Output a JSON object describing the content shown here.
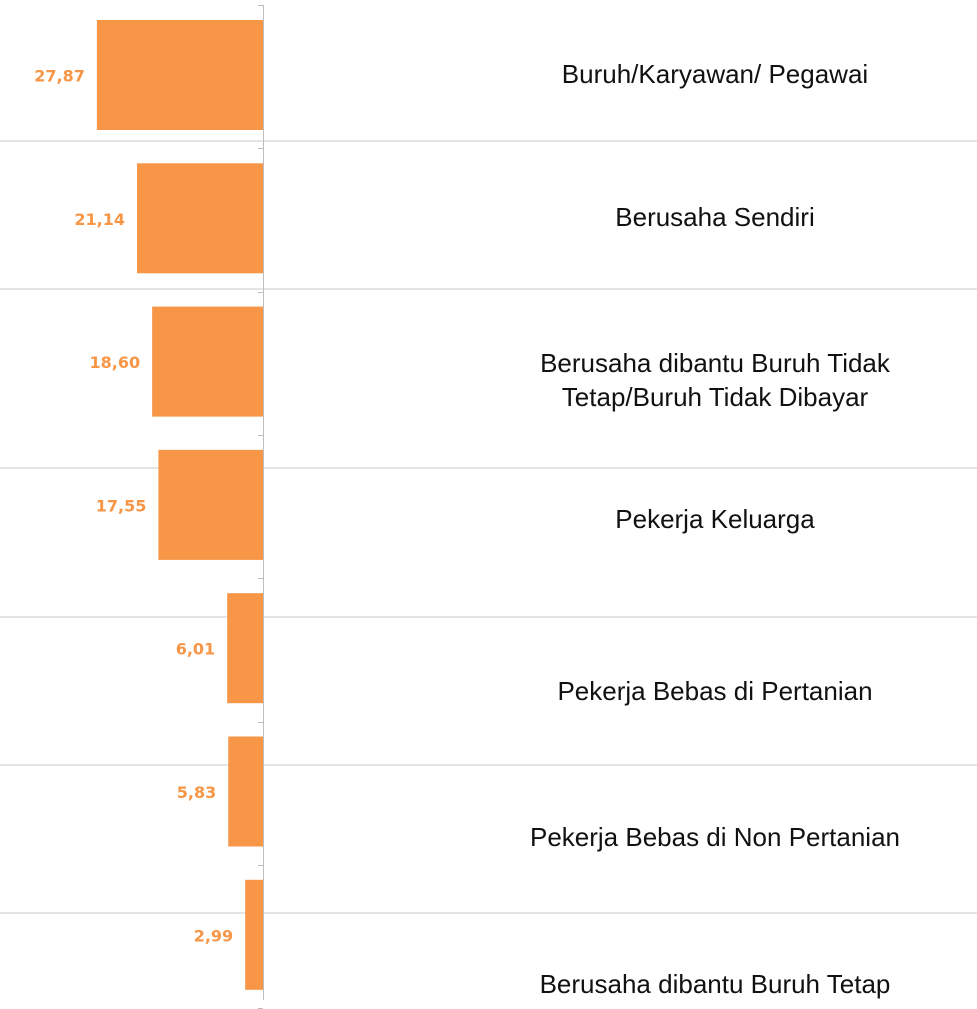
{
  "chart_data": {
    "type": "bar",
    "orientation": "horizontal",
    "categories": [
      "Buruh/Karyawan/ Pegawai",
      "Berusaha Sendiri",
      "Berusaha dibantu Buruh Tidak Tetap/Buruh Tidak Dibayar",
      "Pekerja Keluarga",
      "Pekerja Bebas di Pertanian",
      "Pekerja Bebas di Non Pertanian",
      "Berusaha dibantu Buruh Tetap"
    ],
    "values": [
      27.87,
      21.14,
      18.6,
      17.55,
      6.01,
      5.83,
      2.99
    ],
    "value_labels": [
      "27,87",
      "21,14",
      "18,60",
      "17,55",
      "6,01",
      "5,83",
      "2,99"
    ],
    "color": "#f79646"
  }
}
